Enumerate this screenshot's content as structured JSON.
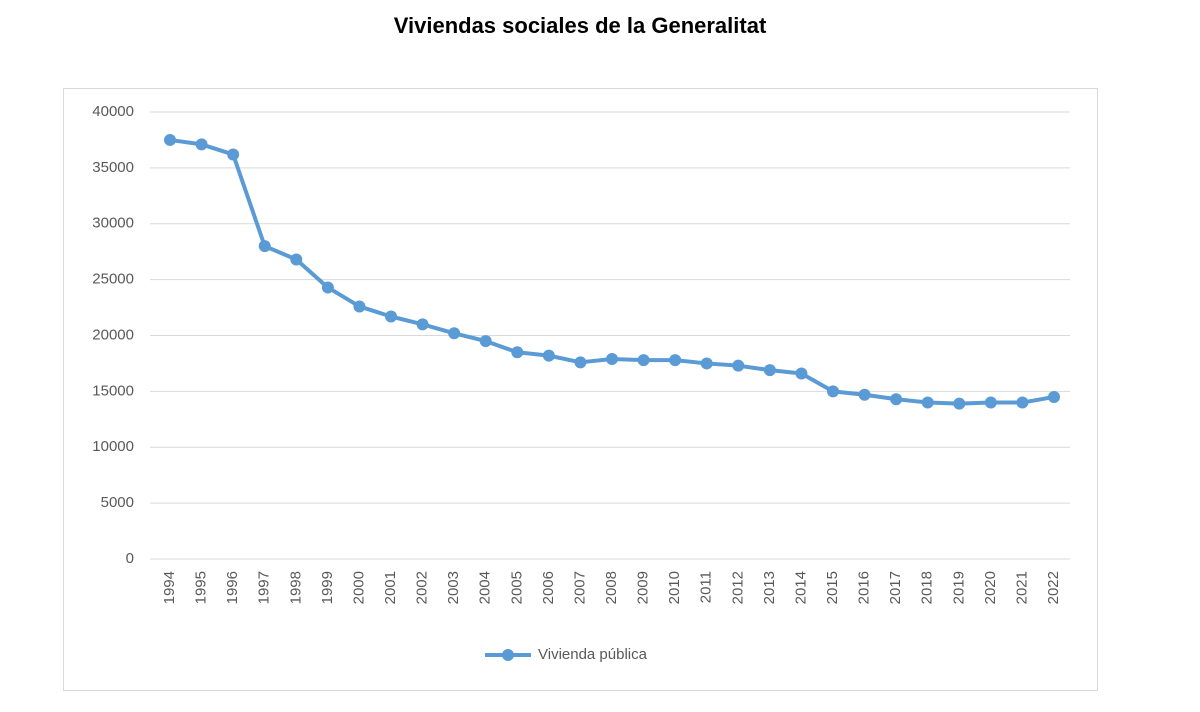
{
  "chart_data": {
    "type": "line",
    "title": "Viviendas sociales de la Generalitat",
    "categories": [
      "1994",
      "1995",
      "1996",
      "1997",
      "1998",
      "1999",
      "2000",
      "2001",
      "2002",
      "2003",
      "2004",
      "2005",
      "2006",
      "2007",
      "2008",
      "2009",
      "2010",
      "2011",
      "2012",
      "2013",
      "2014",
      "2015",
      "2016",
      "2017",
      "2018",
      "2019",
      "2020",
      "2021",
      "2022"
    ],
    "series": [
      {
        "name": "Vivienda pública",
        "color": "#5b9bd5",
        "values": [
          37500,
          37100,
          36200,
          28000,
          26800,
          24300,
          22600,
          21700,
          21000,
          20200,
          19500,
          18500,
          18200,
          17600,
          17900,
          17800,
          17800,
          17500,
          17300,
          16900,
          16600,
          15000,
          14700,
          14300,
          14000,
          13900,
          14000,
          14000,
          14500
        ]
      }
    ],
    "ylim": [
      0,
      40000
    ],
    "yticks": [
      0,
      5000,
      10000,
      15000,
      20000,
      25000,
      30000,
      35000,
      40000
    ],
    "grid": true,
    "legend": "bottom"
  }
}
